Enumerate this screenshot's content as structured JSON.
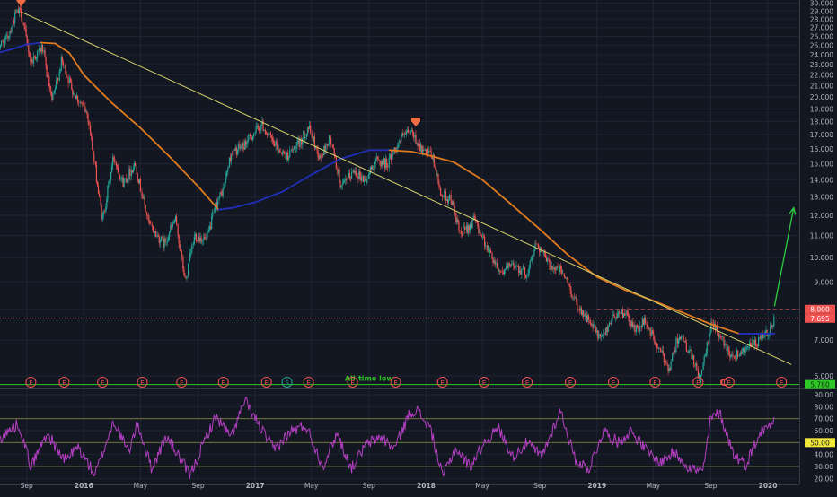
{
  "colors": {
    "background": "#131722",
    "grid": "#1f2433",
    "axis_text": "#b2b5be",
    "candle_up": "#26a69a",
    "candle_down": "#ef5350",
    "ma_rising": "#e07b20",
    "ma_falling": "#1f2fb8",
    "trendline": "#d8d26a",
    "support_line": "#2ec826",
    "arrow": "#2ecc40",
    "rsi_line": "#b53fc4",
    "rsi_bands": "#7f7f3f",
    "event_marker": "#ef5350",
    "event_marker_s": "#26a69a",
    "price_badge_red": "#ef5350",
    "price_badge_green": "#2ec826",
    "rsi_badge": "#f3e93a"
  },
  "chart_data": {
    "type": "candlestick",
    "x_range": [
      "2015-07",
      "2020-02"
    ],
    "x_tick_labels": [
      "Sep",
      "2016",
      "May",
      "Sep",
      "2017",
      "May",
      "Sep",
      "2018",
      "May",
      "Sep",
      "2019",
      "May",
      "Sep",
      "2020"
    ],
    "x_ticks": [
      "2015-09-01",
      "2016-01-01",
      "2016-05-01",
      "2016-09-01",
      "2017-01-01",
      "2017-05-01",
      "2017-09-01",
      "2018-01-01",
      "2018-05-01",
      "2018-09-01",
      "2019-01-01",
      "2019-05-01",
      "2019-09-01",
      "2020-01-01"
    ],
    "y_tick_labels": [
      "30.000",
      "29.000",
      "28.000",
      "27.000",
      "26.000",
      "25.000",
      "24.000",
      "23.000",
      "22.000",
      "21.000",
      "20.000",
      "19.000",
      "18.000",
      "17.000",
      "16.000",
      "15.000",
      "14.000",
      "13.000",
      "12.000",
      "11.000",
      "10.000",
      "9.000",
      "8.000",
      "7.000",
      "6.000"
    ],
    "price_log_scale": true,
    "ylim": [
      6.0,
      30.0
    ],
    "grid": true,
    "price_path": [
      [
        "2015-07-01",
        24.8
      ],
      [
        "2015-07-20",
        25.6
      ],
      [
        "2015-08-10",
        28.7
      ],
      [
        "2015-08-20",
        28.9
      ],
      [
        "2015-09-10",
        23.3
      ],
      [
        "2015-10-05",
        24.8
      ],
      [
        "2015-10-25",
        19.5
      ],
      [
        "2015-11-15",
        23.4
      ],
      [
        "2015-12-10",
        20.5
      ],
      [
        "2016-01-10",
        18.5
      ],
      [
        "2016-02-10",
        11.7
      ],
      [
        "2016-03-05",
        15.5
      ],
      [
        "2016-03-25",
        13.8
      ],
      [
        "2016-04-20",
        15.0
      ],
      [
        "2016-05-20",
        11.5
      ],
      [
        "2016-06-20",
        10.6
      ],
      [
        "2016-07-15",
        11.8
      ],
      [
        "2016-08-05",
        9.0
      ],
      [
        "2016-08-25",
        11.0
      ],
      [
        "2016-09-20",
        10.8
      ],
      [
        "2016-10-10",
        12.6
      ],
      [
        "2016-10-25",
        13.4
      ],
      [
        "2016-11-10",
        15.6
      ],
      [
        "2016-12-10",
        16.3
      ],
      [
        "2017-01-15",
        17.8
      ],
      [
        "2017-02-10",
        16.3
      ],
      [
        "2017-03-10",
        15.5
      ],
      [
        "2017-04-05",
        16.3
      ],
      [
        "2017-04-25",
        17.6
      ],
      [
        "2017-05-20",
        15.3
      ],
      [
        "2017-06-10",
        16.8
      ],
      [
        "2017-07-05",
        13.5
      ],
      [
        "2017-08-01",
        14.6
      ],
      [
        "2017-08-25",
        13.9
      ],
      [
        "2017-09-15",
        15.2
      ],
      [
        "2017-10-10",
        15.0
      ],
      [
        "2017-11-10",
        16.8
      ],
      [
        "2017-12-01",
        17.2
      ],
      [
        "2017-12-25",
        15.8
      ],
      [
        "2018-01-15",
        15.5
      ],
      [
        "2018-02-01",
        13.2
      ],
      [
        "2018-02-25",
        12.8
      ],
      [
        "2018-03-15",
        11.0
      ],
      [
        "2018-04-15",
        11.8
      ],
      [
        "2018-05-15",
        10.3
      ],
      [
        "2018-06-10",
        9.4
      ],
      [
        "2018-07-10",
        9.7
      ],
      [
        "2018-08-05",
        9.3
      ],
      [
        "2018-08-25",
        10.7
      ],
      [
        "2018-09-20",
        9.7
      ],
      [
        "2018-10-20",
        9.4
      ],
      [
        "2018-11-15",
        8.3
      ],
      [
        "2018-12-15",
        7.6
      ],
      [
        "2019-01-10",
        7.0
      ],
      [
        "2019-02-05",
        7.8
      ],
      [
        "2019-03-01",
        7.9
      ],
      [
        "2019-03-25",
        7.3
      ],
      [
        "2019-04-15",
        7.6
      ],
      [
        "2019-05-10",
        6.8
      ],
      [
        "2019-06-05",
        6.2
      ],
      [
        "2019-06-25",
        7.2
      ],
      [
        "2019-07-20",
        6.6
      ],
      [
        "2019-08-10",
        5.9
      ],
      [
        "2019-09-05",
        7.6
      ],
      [
        "2019-09-25",
        7.0
      ],
      [
        "2019-10-20",
        6.5
      ],
      [
        "2019-11-15",
        6.8
      ],
      [
        "2019-12-10",
        6.9
      ],
      [
        "2020-01-05",
        7.3
      ],
      [
        "2020-01-15",
        7.7
      ]
    ],
    "moving_average": [
      [
        "2015-07-01",
        24.2
      ],
      [
        "2015-08-01",
        24.6
      ],
      [
        "2015-09-01",
        25.1
      ],
      [
        "2015-10-01",
        25.3
      ],
      [
        "2015-11-01",
        25.2
      ],
      [
        "2015-12-01",
        24.2
      ],
      [
        "2016-01-01",
        22.0
      ],
      [
        "2016-03-01",
        19.5
      ],
      [
        "2016-05-01",
        17.5
      ],
      [
        "2016-07-01",
        15.5
      ],
      [
        "2016-09-01",
        13.6
      ],
      [
        "2016-10-15",
        12.3
      ],
      [
        "2016-11-15",
        12.4
      ],
      [
        "2017-01-01",
        12.7
      ],
      [
        "2017-03-01",
        13.3
      ],
      [
        "2017-05-01",
        14.3
      ],
      [
        "2017-07-01",
        15.3
      ],
      [
        "2017-09-01",
        15.9
      ],
      [
        "2017-10-15",
        15.9
      ],
      [
        "2017-12-01",
        15.8
      ],
      [
        "2018-01-01",
        15.6
      ],
      [
        "2018-03-01",
        15.1
      ],
      [
        "2018-05-01",
        14.0
      ],
      [
        "2018-07-01",
        12.6
      ],
      [
        "2018-09-01",
        11.3
      ],
      [
        "2018-11-01",
        10.1
      ],
      [
        "2019-01-01",
        9.2
      ],
      [
        "2019-03-01",
        8.7
      ],
      [
        "2019-05-01",
        8.3
      ],
      [
        "2019-07-01",
        7.9
      ],
      [
        "2019-09-01",
        7.5
      ],
      [
        "2019-11-01",
        7.2
      ],
      [
        "2020-01-15",
        7.2
      ]
    ],
    "trendline": [
      [
        "2015-08-20",
        28.9
      ],
      [
        "2020-02-20",
        6.3
      ]
    ],
    "support_level": 5.78,
    "support_label": "All-time low",
    "reference_levels": [
      7.695,
      8.0
    ],
    "price_badges": [
      {
        "value": 8.0,
        "label": "8.000",
        "style": "red"
      },
      {
        "value": 7.695,
        "label": "7.695",
        "style": "red"
      },
      {
        "value": 5.78,
        "label": "5.780",
        "style": "green"
      }
    ],
    "peak_markers": [
      [
        "2015-08-20",
        28.9
      ],
      [
        "2017-12-10",
        17.2
      ]
    ],
    "projection_arrow": {
      "from": [
        "2020-01-15",
        8.1
      ],
      "to": [
        "2020-02-25",
        12.4
      ]
    },
    "events": [
      {
        "date": "2015-09-10",
        "label": "E"
      },
      {
        "date": "2015-11-20",
        "label": "E"
      },
      {
        "date": "2016-02-10",
        "label": "E"
      },
      {
        "date": "2016-05-05",
        "label": "E"
      },
      {
        "date": "2016-07-28",
        "label": "E"
      },
      {
        "date": "2016-10-25",
        "label": "E"
      },
      {
        "date": "2017-01-25",
        "label": "E"
      },
      {
        "date": "2017-03-10",
        "label": "S"
      },
      {
        "date": "2017-04-25",
        "label": "E"
      },
      {
        "date": "2017-07-28",
        "label": "E"
      },
      {
        "date": "2017-10-28",
        "label": "E"
      },
      {
        "date": "2018-02-05",
        "label": "E"
      },
      {
        "date": "2018-05-05",
        "label": "E"
      },
      {
        "date": "2018-08-05",
        "label": "E"
      },
      {
        "date": "2018-11-05",
        "label": "E"
      },
      {
        "date": "2019-02-05",
        "label": "E"
      },
      {
        "date": "2019-05-05",
        "label": "E"
      },
      {
        "date": "2019-08-05",
        "label": "E"
      },
      {
        "date": "2019-10-10",
        "label": "E"
      },
      {
        "date": "2020-01-30",
        "label": "E"
      }
    ],
    "dividend_marker": {
      "date": "2019-09-28",
      "label": "C"
    },
    "rsi": {
      "y_tick_labels": [
        "90.00",
        "80.00",
        "70.00",
        "60.00",
        "50.00",
        "40.00",
        "30.00",
        "20.00"
      ],
      "ylim": [
        15,
        93
      ],
      "bands": [
        70,
        50,
        30
      ],
      "badge_label": "50.00",
      "badge_value": 50,
      "path": [
        [
          "2015-07-01",
          52
        ],
        [
          "2015-08-15",
          66
        ],
        [
          "2015-09-10",
          30
        ],
        [
          "2015-10-15",
          58
        ],
        [
          "2015-11-20",
          35
        ],
        [
          "2015-12-20",
          46
        ],
        [
          "2016-01-25",
          23
        ],
        [
          "2016-03-05",
          68
        ],
        [
          "2016-04-05",
          42
        ],
        [
          "2016-04-25",
          66
        ],
        [
          "2016-05-25",
          28
        ],
        [
          "2016-06-25",
          55
        ],
        [
          "2016-07-20",
          40
        ],
        [
          "2016-08-15",
          22
        ],
        [
          "2016-09-20",
          56
        ],
        [
          "2016-10-10",
          72
        ],
        [
          "2016-11-10",
          54
        ],
        [
          "2016-12-10",
          85
        ],
        [
          "2017-01-10",
          64
        ],
        [
          "2017-02-10",
          44
        ],
        [
          "2017-03-20",
          60
        ],
        [
          "2017-04-20",
          64
        ],
        [
          "2017-05-25",
          30
        ],
        [
          "2017-06-25",
          58
        ],
        [
          "2017-07-25",
          28
        ],
        [
          "2017-08-25",
          48
        ],
        [
          "2017-09-25",
          55
        ],
        [
          "2017-10-25",
          45
        ],
        [
          "2017-11-25",
          73
        ],
        [
          "2017-12-10",
          78
        ],
        [
          "2018-01-10",
          62
        ],
        [
          "2018-02-05",
          22
        ],
        [
          "2018-03-05",
          45
        ],
        [
          "2018-04-05",
          30
        ],
        [
          "2018-05-05",
          50
        ],
        [
          "2018-06-05",
          62
        ],
        [
          "2018-07-05",
          38
        ],
        [
          "2018-08-05",
          50
        ],
        [
          "2018-09-05",
          38
        ],
        [
          "2018-10-15",
          77
        ],
        [
          "2018-11-15",
          36
        ],
        [
          "2018-12-15",
          28
        ],
        [
          "2019-01-15",
          60
        ],
        [
          "2019-02-15",
          50
        ],
        [
          "2019-03-15",
          60
        ],
        [
          "2019-04-15",
          44
        ],
        [
          "2019-05-15",
          33
        ],
        [
          "2019-06-15",
          42
        ],
        [
          "2019-07-15",
          30
        ],
        [
          "2019-08-15",
          25
        ],
        [
          "2019-09-01",
          70
        ],
        [
          "2019-09-20",
          75
        ],
        [
          "2019-10-20",
          40
        ],
        [
          "2019-11-15",
          32
        ],
        [
          "2019-12-15",
          58
        ],
        [
          "2020-01-05",
          65
        ],
        [
          "2020-01-15",
          73
        ]
      ]
    }
  }
}
